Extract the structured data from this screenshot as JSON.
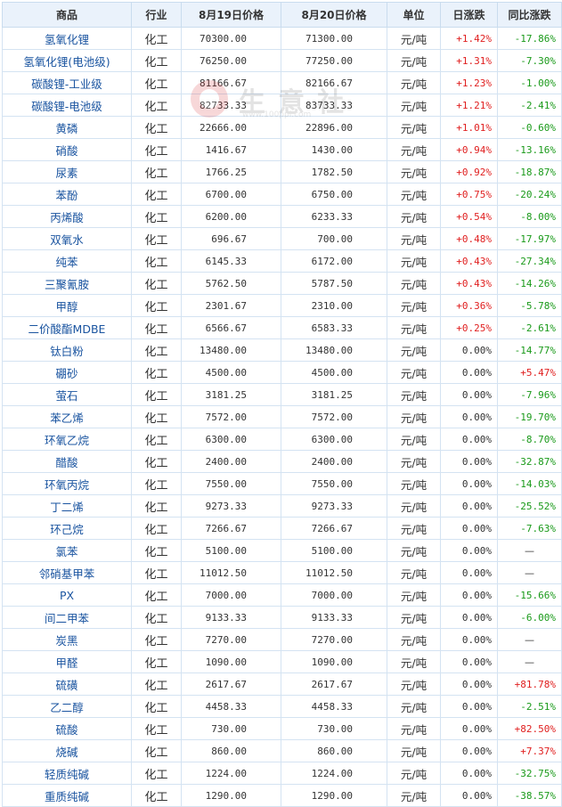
{
  "headers": [
    "商品",
    "行业",
    "8月19日价格",
    "8月20日价格",
    "单位",
    "日涨跌",
    "同比涨跌"
  ],
  "rows": [
    {
      "name": "氢氧化锂",
      "industry": "化工",
      "p1": "70300.00",
      "p2": "71300.00",
      "unit": "元/吨",
      "day": "+1.42%",
      "yoy": "-17.86%"
    },
    {
      "name": "氢氧化锂(电池级)",
      "industry": "化工",
      "p1": "76250.00",
      "p2": "77250.00",
      "unit": "元/吨",
      "day": "+1.31%",
      "yoy": "-7.30%"
    },
    {
      "name": "碳酸锂-工业级",
      "industry": "化工",
      "p1": "81166.67",
      "p2": "82166.67",
      "unit": "元/吨",
      "day": "+1.23%",
      "yoy": "-1.00%"
    },
    {
      "name": "碳酸锂-电池级",
      "industry": "化工",
      "p1": "82733.33",
      "p2": "83733.33",
      "unit": "元/吨",
      "day": "+1.21%",
      "yoy": "-2.41%"
    },
    {
      "name": "黄磷",
      "industry": "化工",
      "p1": "22666.00",
      "p2": "22896.00",
      "unit": "元/吨",
      "day": "+1.01%",
      "yoy": "-0.60%"
    },
    {
      "name": "硝酸",
      "industry": "化工",
      "p1": "1416.67",
      "p2": "1430.00",
      "unit": "元/吨",
      "day": "+0.94%",
      "yoy": "-13.16%"
    },
    {
      "name": "尿素",
      "industry": "化工",
      "p1": "1766.25",
      "p2": "1782.50",
      "unit": "元/吨",
      "day": "+0.92%",
      "yoy": "-18.87%"
    },
    {
      "name": "苯酚",
      "industry": "化工",
      "p1": "6700.00",
      "p2": "6750.00",
      "unit": "元/吨",
      "day": "+0.75%",
      "yoy": "-20.24%"
    },
    {
      "name": "丙烯酸",
      "industry": "化工",
      "p1": "6200.00",
      "p2": "6233.33",
      "unit": "元/吨",
      "day": "+0.54%",
      "yoy": "-8.00%"
    },
    {
      "name": "双氧水",
      "industry": "化工",
      "p1": "696.67",
      "p2": "700.00",
      "unit": "元/吨",
      "day": "+0.48%",
      "yoy": "-17.97%"
    },
    {
      "name": "纯苯",
      "industry": "化工",
      "p1": "6145.33",
      "p2": "6172.00",
      "unit": "元/吨",
      "day": "+0.43%",
      "yoy": "-27.34%"
    },
    {
      "name": "三聚氰胺",
      "industry": "化工",
      "p1": "5762.50",
      "p2": "5787.50",
      "unit": "元/吨",
      "day": "+0.43%",
      "yoy": "-14.26%"
    },
    {
      "name": "甲醇",
      "industry": "化工",
      "p1": "2301.67",
      "p2": "2310.00",
      "unit": "元/吨",
      "day": "+0.36%",
      "yoy": "-5.78%"
    },
    {
      "name": "二价酸酯MDBE",
      "industry": "化工",
      "p1": "6566.67",
      "p2": "6583.33",
      "unit": "元/吨",
      "day": "+0.25%",
      "yoy": "-2.61%"
    },
    {
      "name": "钛白粉",
      "industry": "化工",
      "p1": "13480.00",
      "p2": "13480.00",
      "unit": "元/吨",
      "day": "0.00%",
      "yoy": "-14.77%"
    },
    {
      "name": "硼砂",
      "industry": "化工",
      "p1": "4500.00",
      "p2": "4500.00",
      "unit": "元/吨",
      "day": "0.00%",
      "yoy": "+5.47%"
    },
    {
      "name": "萤石",
      "industry": "化工",
      "p1": "3181.25",
      "p2": "3181.25",
      "unit": "元/吨",
      "day": "0.00%",
      "yoy": "-7.96%"
    },
    {
      "name": "苯乙烯",
      "industry": "化工",
      "p1": "7572.00",
      "p2": "7572.00",
      "unit": "元/吨",
      "day": "0.00%",
      "yoy": "-19.70%"
    },
    {
      "name": "环氧乙烷",
      "industry": "化工",
      "p1": "6300.00",
      "p2": "6300.00",
      "unit": "元/吨",
      "day": "0.00%",
      "yoy": "-8.70%"
    },
    {
      "name": "醋酸",
      "industry": "化工",
      "p1": "2400.00",
      "p2": "2400.00",
      "unit": "元/吨",
      "day": "0.00%",
      "yoy": "-32.87%"
    },
    {
      "name": "环氧丙烷",
      "industry": "化工",
      "p1": "7550.00",
      "p2": "7550.00",
      "unit": "元/吨",
      "day": "0.00%",
      "yoy": "-14.03%"
    },
    {
      "name": "丁二烯",
      "industry": "化工",
      "p1": "9273.33",
      "p2": "9273.33",
      "unit": "元/吨",
      "day": "0.00%",
      "yoy": "-25.52%"
    },
    {
      "name": "环己烷",
      "industry": "化工",
      "p1": "7266.67",
      "p2": "7266.67",
      "unit": "元/吨",
      "day": "0.00%",
      "yoy": "-7.63%"
    },
    {
      "name": "氯苯",
      "industry": "化工",
      "p1": "5100.00",
      "p2": "5100.00",
      "unit": "元/吨",
      "day": "0.00%",
      "yoy": "—"
    },
    {
      "name": "邻硝基甲苯",
      "industry": "化工",
      "p1": "11012.50",
      "p2": "11012.50",
      "unit": "元/吨",
      "day": "0.00%",
      "yoy": "—"
    },
    {
      "name": "PX",
      "industry": "化工",
      "p1": "7000.00",
      "p2": "7000.00",
      "unit": "元/吨",
      "day": "0.00%",
      "yoy": "-15.66%"
    },
    {
      "name": "间二甲苯",
      "industry": "化工",
      "p1": "9133.33",
      "p2": "9133.33",
      "unit": "元/吨",
      "day": "0.00%",
      "yoy": "-6.00%"
    },
    {
      "name": "炭黑",
      "industry": "化工",
      "p1": "7270.00",
      "p2": "7270.00",
      "unit": "元/吨",
      "day": "0.00%",
      "yoy": "—"
    },
    {
      "name": "甲醛",
      "industry": "化工",
      "p1": "1090.00",
      "p2": "1090.00",
      "unit": "元/吨",
      "day": "0.00%",
      "yoy": "—"
    },
    {
      "name": "硫磺",
      "industry": "化工",
      "p1": "2617.67",
      "p2": "2617.67",
      "unit": "元/吨",
      "day": "0.00%",
      "yoy": "+81.78%"
    },
    {
      "name": "乙二醇",
      "industry": "化工",
      "p1": "4458.33",
      "p2": "4458.33",
      "unit": "元/吨",
      "day": "0.00%",
      "yoy": "-2.51%"
    },
    {
      "name": "硫酸",
      "industry": "化工",
      "p1": "730.00",
      "p2": "730.00",
      "unit": "元/吨",
      "day": "0.00%",
      "yoy": "+82.50%"
    },
    {
      "name": "烧碱",
      "industry": "化工",
      "p1": "860.00",
      "p2": "860.00",
      "unit": "元/吨",
      "day": "0.00%",
      "yoy": "+7.37%"
    },
    {
      "name": "轻质纯碱",
      "industry": "化工",
      "p1": "1224.00",
      "p2": "1224.00",
      "unit": "元/吨",
      "day": "0.00%",
      "yoy": "-32.75%"
    },
    {
      "name": "重质纯碱",
      "industry": "化工",
      "p1": "1290.00",
      "p2": "1290.00",
      "unit": "元/吨",
      "day": "0.00%",
      "yoy": "-38.57%"
    }
  ],
  "watermark": {
    "text": "生意社",
    "url": "www.100ppi.com"
  },
  "colors": {
    "up": "#e02020",
    "down": "#1a9a1a",
    "link": "#1a54a0",
    "header_bg": "#eaf2fb",
    "border": "#d4e3f2"
  }
}
